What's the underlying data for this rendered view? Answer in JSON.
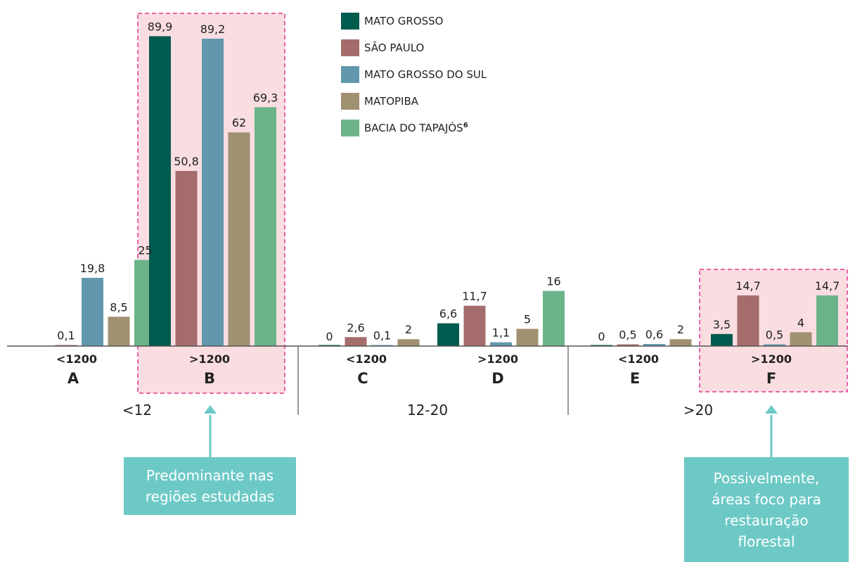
{
  "chart_data": {
    "type": "bar",
    "series": [
      {
        "name": "MATO GROSSO",
        "color": "#005b4f"
      },
      {
        "name": "SÃO PAULO",
        "color": "#a56c6c"
      },
      {
        "name": "MATO GROSSO DO SUL",
        "color": "#6298ae"
      },
      {
        "name": "MATOPIBA",
        "color": "#a09170"
      },
      {
        "name": "BACIA DO TAPAJÓS",
        "sup": "6",
        "color": "#6db389"
      }
    ],
    "categories": [
      {
        "letter": "A",
        "sub": "<1200",
        "highlight": false,
        "values": [
          {
            "series": 1,
            "value": 0.1,
            "label": "0,1"
          },
          {
            "series": 2,
            "value": 19.8,
            "label": "19,8"
          },
          {
            "series": 3,
            "value": 8.5,
            "label": "8,5"
          },
          {
            "series": 4,
            "value": 25,
            "label": "25"
          }
        ]
      },
      {
        "letter": "B",
        "sub": ">1200",
        "highlight": true,
        "values": [
          {
            "series": 0,
            "value": 89.9,
            "label": "89,9"
          },
          {
            "series": 1,
            "value": 50.8,
            "label": "50,8"
          },
          {
            "series": 2,
            "value": 89.2,
            "label": "89,2"
          },
          {
            "series": 3,
            "value": 62,
            "label": "62"
          },
          {
            "series": 4,
            "value": 69.3,
            "label": "69,3"
          }
        ]
      },
      {
        "letter": "C",
        "sub": "<1200",
        "highlight": false,
        "values": [
          {
            "series": 0,
            "value": 0,
            "label": "0"
          },
          {
            "series": 1,
            "value": 2.6,
            "label": "2,6"
          },
          {
            "series": 2,
            "value": 0.1,
            "label": "0,1"
          },
          {
            "series": 3,
            "value": 2,
            "label": "2"
          }
        ]
      },
      {
        "letter": "D",
        "sub": ">1200",
        "highlight": false,
        "values": [
          {
            "series": 0,
            "value": 6.6,
            "label": "6,6"
          },
          {
            "series": 1,
            "value": 11.7,
            "label": "11,7"
          },
          {
            "series": 2,
            "value": 1.1,
            "label": "1,1"
          },
          {
            "series": 3,
            "value": 5,
            "label": "5"
          },
          {
            "series": 4,
            "value": 16,
            "label": "16"
          }
        ]
      },
      {
        "letter": "E",
        "sub": "<1200",
        "highlight": false,
        "values": [
          {
            "series": 0,
            "value": 0,
            "label": "0"
          },
          {
            "series": 1,
            "value": 0.5,
            "label": "0,5"
          },
          {
            "series": 2,
            "value": 0.6,
            "label": "0,6"
          },
          {
            "series": 3,
            "value": 2,
            "label": "2"
          }
        ]
      },
      {
        "letter": "F",
        "sub": ">1200",
        "highlight": true,
        "values": [
          {
            "series": 0,
            "value": 3.5,
            "label": "3,5"
          },
          {
            "series": 1,
            "value": 14.7,
            "label": "14,7"
          },
          {
            "series": 2,
            "value": 0.5,
            "label": "0,5"
          },
          {
            "series": 3,
            "value": 4,
            "label": "4"
          },
          {
            "series": 4,
            "value": 14.7,
            "label": "14,7"
          }
        ]
      }
    ],
    "groups": [
      "<12",
      "12-20",
      ">20"
    ],
    "highlight_color": "#f9dde1",
    "highlight_border": "#e0368f"
  },
  "callouts": {
    "left": {
      "text": "Predominante nas regiões estudadas"
    },
    "right": {
      "text": "Possivelmente, áreas foco para restauração florestal"
    },
    "color": "#6dc9c6"
  }
}
